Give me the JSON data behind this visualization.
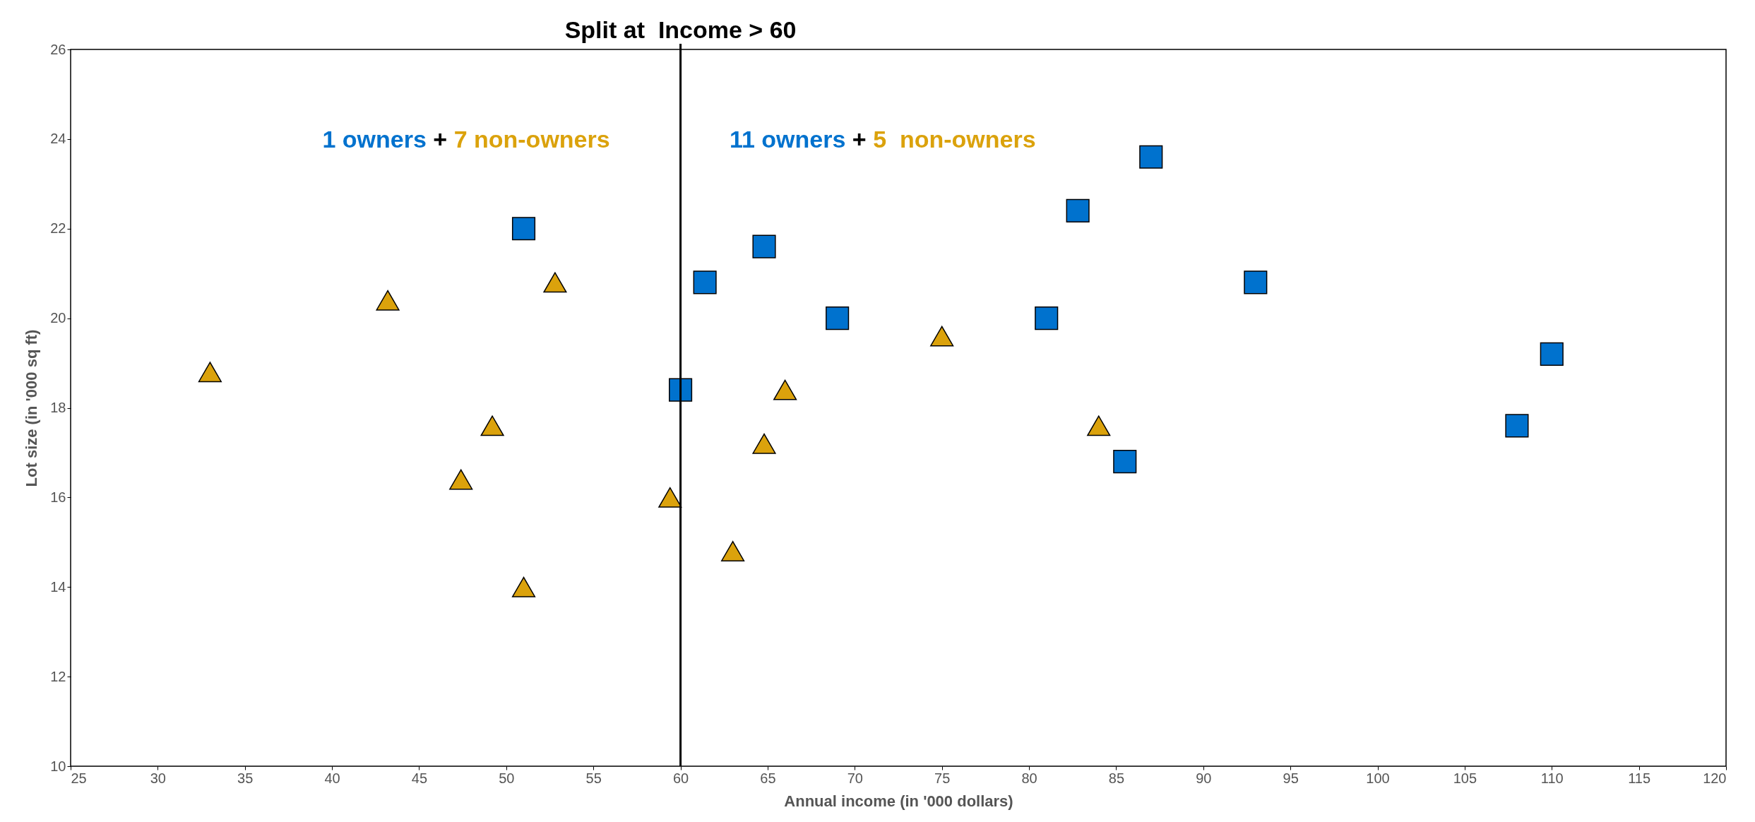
{
  "chart_data": {
    "type": "scatter",
    "xlabel": "Annual income (in '000 dollars)",
    "ylabel": "Lot size (in '000 sq ft)",
    "xlim": [
      25,
      120
    ],
    "xticks": [
      25,
      30,
      35,
      40,
      45,
      50,
      55,
      60,
      65,
      70,
      75,
      80,
      85,
      90,
      95,
      100,
      105,
      110,
      115,
      120
    ],
    "ylim": [
      10,
      26
    ],
    "yticks": [
      10,
      12,
      14,
      16,
      18,
      20,
      22,
      24,
      26
    ],
    "series": [
      {
        "marker": "square",
        "color": "#0072ce",
        "x": [
          51,
          61.4,
          64.8,
          60,
          69,
          81,
          82.8,
          87,
          93,
          85.5,
          108,
          110
        ],
        "values": [
          22,
          20.8,
          21.6,
          18.4,
          20,
          20,
          22.4,
          23.6,
          20.8,
          16.8,
          17.6,
          19.2
        ]
      },
      {
        "marker": "triangle",
        "color": "#dba20c",
        "x": [
          33,
          43.2,
          52.8,
          49.2,
          47.4,
          51,
          59.4,
          63,
          64.8,
          66,
          75,
          84
        ],
        "values": [
          18.8,
          20.4,
          20.8,
          17.6,
          16.4,
          14,
          16,
          14.8,
          17.2,
          18.4,
          19.6,
          17.6
        ]
      }
    ],
    "ref_lines": [
      {
        "axis": "x",
        "value": 60,
        "label": "Split at  Income > 60",
        "color": "#000000"
      }
    ],
    "annotations": [
      "1 owners + 7 non-owners",
      "11 owners + 5  non-owners"
    ]
  }
}
